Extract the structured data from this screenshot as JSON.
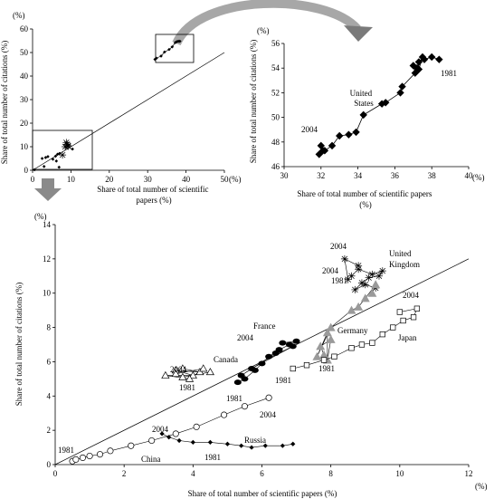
{
  "chart_data": [
    {
      "type": "scatter",
      "panel": "overview",
      "xlabel": "Share of total number of scientific papers (%)",
      "ylabel": "Share of total number of citations (%)",
      "unit_x": "(%)",
      "unit_y": "(%)",
      "xlim": [
        0,
        50
      ],
      "ylim": [
        0,
        60
      ],
      "xticks": [
        "0",
        "10",
        "20",
        "30",
        "40",
        "50"
      ],
      "yticks": [
        "0",
        "10",
        "20",
        "30",
        "40",
        "50",
        "60"
      ],
      "reference_line": [
        [
          0,
          0
        ],
        [
          50,
          50
        ]
      ],
      "series": [
        {
          "values": [
            [
              31.9,
              47.1
            ],
            [
              32.3,
              47.6
            ],
            [
              33.5,
              48.5
            ],
            [
              34.4,
              50.2
            ],
            [
              35.6,
              51.3
            ],
            [
              36.4,
              52.4
            ],
            [
              37.2,
              54.2
            ],
            [
              37.6,
              54.6
            ],
            [
              38.0,
              54.8
            ],
            [
              38.4,
              54.8
            ]
          ]
        },
        {
          "values": [
            [
              8.5,
              10.0
            ],
            [
              9.2,
              10.5
            ],
            [
              9.0,
              11.0
            ],
            [
              8.8,
              11.8
            ],
            [
              7.8,
              6.5
            ],
            [
              9.3,
              10.2
            ]
          ]
        },
        {
          "values": [
            [
              5.3,
              4.7
            ],
            [
              6.0,
              6.0
            ],
            [
              6.5,
              6.8
            ],
            [
              7.0,
              7.1
            ],
            [
              2.5,
              5.0
            ],
            [
              3.4,
              5.4
            ],
            [
              0.5,
              0.2
            ],
            [
              6.2,
              3.9
            ],
            [
              4.0,
              5.8
            ],
            [
              10.4,
              9.0
            ],
            [
              3.0,
              1.6
            ],
            [
              6.9,
              1.3
            ]
          ]
        }
      ]
    },
    {
      "type": "line",
      "panel": "USA detail",
      "xlabel": "Share of total number of scientific papers (%)",
      "ylabel": "Share of total number of citations (%)",
      "unit_x": "(%)",
      "unit_y": "(%)",
      "xlim": [
        30,
        40
      ],
      "ylim": [
        46,
        56
      ],
      "xticks": [
        "30",
        "32",
        "34",
        "36",
        "38",
        "40"
      ],
      "yticks": [
        "46",
        "48",
        "50",
        "52",
        "54",
        "56"
      ],
      "annotations": {
        "start": "1981",
        "end": "2004",
        "country": [
          "United",
          "States"
        ]
      },
      "series": [
        {
          "name": "United States",
          "values": [
            [
              38.4,
              54.7
            ],
            [
              38.0,
              54.9
            ],
            [
              37.6,
              54.7
            ],
            [
              37.3,
              54.5
            ],
            [
              37.2,
              54.0
            ],
            [
              37.5,
              54.9
            ],
            [
              37.3,
              53.9
            ],
            [
              37.0,
              54.2
            ],
            [
              37.1,
              53.6
            ],
            [
              36.4,
              52.5
            ],
            [
              36.3,
              52.0
            ],
            [
              35.5,
              51.2
            ],
            [
              35.3,
              51.1
            ],
            [
              34.3,
              50.2
            ],
            [
              33.9,
              48.8
            ],
            [
              33.5,
              48.6
            ],
            [
              33.0,
              48.5
            ],
            [
              32.6,
              47.7
            ],
            [
              32.2,
              47.3
            ],
            [
              32.0,
              47.7
            ],
            [
              32.1,
              47.3
            ],
            [
              31.9,
              47.0
            ]
          ]
        }
      ]
    },
    {
      "type": "line",
      "panel": "other countries",
      "xlabel": "Share of total number of scientific papers (%)",
      "ylabel": "Share of total number of citations (%)",
      "unit_x": "(%)",
      "unit_y": "(%)",
      "xlim": [
        0,
        12
      ],
      "ylim": [
        0,
        14
      ],
      "xticks": [
        "0",
        "2",
        "4",
        "6",
        "8",
        "10",
        "12"
      ],
      "yticks": [
        "0",
        "2",
        "4",
        "6",
        "8",
        "10",
        "12",
        "14"
      ],
      "reference_line": [
        [
          0,
          0
        ],
        [
          12,
          12
        ]
      ],
      "annotations": {
        "uk_country": [
          "United",
          "Kingdom"
        ],
        "uk_2004a": "2004",
        "uk_2004b": "2004",
        "uk_1981": "1981",
        "france_country": "France",
        "france_2004": "2004",
        "france_1981": "1981",
        "germany_country": "Germany",
        "germany_1981": "1981",
        "japan_country": "Japan",
        "japan_2004": "2004",
        "canada_country": "Canada",
        "canada_2004": "2004",
        "canada_1981": "1981",
        "china_country": "China",
        "china_1981": "1981",
        "china_2004": "2004",
        "russia_country": "Russia",
        "russia_1981": "1981",
        "russia_2004": "2004"
      },
      "series": [
        {
          "name": "United Kingdom",
          "values": [
            [
              9.3,
              10.3
            ],
            [
              9.0,
              10.5
            ],
            [
              8.7,
              10.2
            ],
            [
              8.9,
              10.6
            ],
            [
              9.1,
              10.9
            ],
            [
              9.4,
              11.0
            ],
            [
              9.5,
              11.3
            ],
            [
              9.2,
              11.1
            ],
            [
              8.8,
              11.4
            ],
            [
              8.6,
              11.0
            ],
            [
              8.5,
              10.8
            ],
            [
              8.4,
              12.0
            ],
            [
              8.8,
              11.6
            ]
          ]
        },
        {
          "name": "Germany",
          "values": [
            [
              7.8,
              6.4
            ],
            [
              7.7,
              6.9
            ],
            [
              8.0,
              7.3
            ],
            [
              7.9,
              6.1
            ],
            [
              7.9,
              7.7
            ],
            [
              7.6,
              6.3
            ],
            [
              8.0,
              8.0
            ],
            [
              8.6,
              9.0
            ],
            [
              8.8,
              9.2
            ],
            [
              9.0,
              9.7
            ],
            [
              9.3,
              10.5
            ],
            [
              9.2,
              10.0
            ]
          ]
        },
        {
          "name": "Japan",
          "values": [
            [
              6.9,
              5.6
            ],
            [
              7.3,
              5.8
            ],
            [
              7.8,
              6.1
            ],
            [
              8.1,
              6.3
            ],
            [
              8.6,
              6.8
            ],
            [
              8.9,
              7.0
            ],
            [
              9.2,
              7.1
            ],
            [
              9.5,
              7.6
            ],
            [
              9.8,
              8.0
            ],
            [
              10.1,
              8.4
            ],
            [
              10.4,
              8.6
            ],
            [
              10.5,
              9.1
            ],
            [
              10.0,
              8.9
            ]
          ]
        },
        {
          "name": "France",
          "values": [
            [
              5.3,
              4.8
            ],
            [
              5.5,
              5.0
            ],
            [
              5.8,
              5.5
            ],
            [
              6.0,
              5.9
            ],
            [
              6.2,
              6.3
            ],
            [
              6.5,
              6.7
            ],
            [
              6.8,
              7.0
            ],
            [
              7.0,
              7.2
            ],
            [
              6.6,
              7.1
            ],
            [
              6.9,
              6.9
            ],
            [
              5.7,
              5.6
            ],
            [
              5.4,
              5.2
            ],
            [
              6.4,
              6.5
            ]
          ]
        },
        {
          "name": "Canada",
          "values": [
            [
              3.7,
              5.6
            ],
            [
              4.2,
              5.4
            ],
            [
              3.5,
              5.5
            ],
            [
              4.0,
              5.2
            ],
            [
              3.2,
              5.2
            ],
            [
              3.9,
              5.0
            ],
            [
              4.3,
              5.6
            ],
            [
              3.5,
              5.3
            ],
            [
              3.7,
              5.1
            ],
            [
              4.5,
              5.4
            ]
          ]
        },
        {
          "name": "China",
          "values": [
            [
              0.5,
              0.2
            ],
            [
              0.6,
              0.3
            ],
            [
              0.8,
              0.4
            ],
            [
              1.0,
              0.5
            ],
            [
              1.3,
              0.6
            ],
            [
              1.6,
              0.8
            ],
            [
              2.2,
              1.1
            ],
            [
              2.8,
              1.4
            ],
            [
              3.5,
              1.8
            ],
            [
              4.1,
              2.2
            ],
            [
              4.9,
              2.9
            ],
            [
              5.5,
              3.4
            ],
            [
              6.2,
              3.9
            ]
          ]
        },
        {
          "name": "Russia",
          "values": [
            [
              6.9,
              1.2
            ],
            [
              6.6,
              1.1
            ],
            [
              6.1,
              1.1
            ],
            [
              5.7,
              1.0
            ],
            [
              5.4,
              1.1
            ],
            [
              5.0,
              1.2
            ],
            [
              4.5,
              1.3
            ],
            [
              4.0,
              1.3
            ],
            [
              3.6,
              1.4
            ],
            [
              3.3,
              1.6
            ],
            [
              3.1,
              1.8
            ]
          ]
        }
      ]
    }
  ]
}
